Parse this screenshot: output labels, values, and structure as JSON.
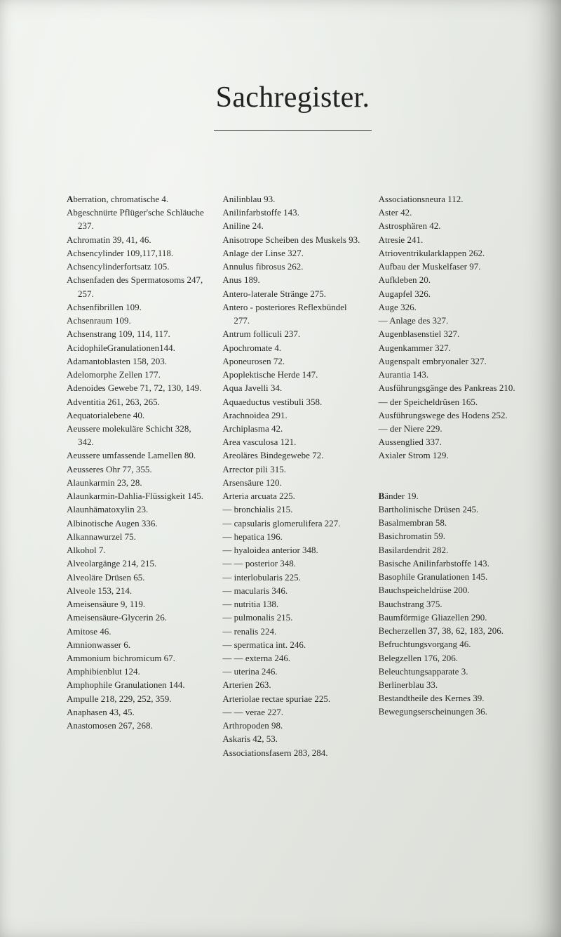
{
  "title": "Sachregister.",
  "columns": [
    [
      {
        "text": "Aberration, chromatische 4.",
        "lead": "A"
      },
      {
        "text": "Abgeschnürte Pflüger'sche Schläuche 237."
      },
      {
        "text": "Achromatin 39, 41, 46."
      },
      {
        "text": "Achsencylinder 109,117,118."
      },
      {
        "text": "Achsencylinderfortsatz 105."
      },
      {
        "text": "Achsenfaden des Spermatosoms 247, 257."
      },
      {
        "text": "Achsenfibrillen 109."
      },
      {
        "text": "Achsenraum 109."
      },
      {
        "text": "Achsenstrang 109, 114, 117."
      },
      {
        "text": "AcidophileGranulationen144."
      },
      {
        "text": "Adamantoblasten 158, 203."
      },
      {
        "text": "Adelomorphe Zellen 177."
      },
      {
        "text": "Adenoides Gewebe 71, 72, 130, 149."
      },
      {
        "text": "Adventitia 261, 263, 265."
      },
      {
        "text": "Aequatorialebene 40."
      },
      {
        "text": "Aeussere molekuläre Schicht 328, 342."
      },
      {
        "text": "Aeussere umfassende Lamellen 80."
      },
      {
        "text": "Aeusseres Ohr 77, 355."
      },
      {
        "text": "Alaunkarmin 23, 28."
      },
      {
        "text": "Alaunkarmin-Dahlia-Flüssigkeit 145."
      },
      {
        "text": "Alaunhämatoxylin 23."
      },
      {
        "text": "Albinotische Augen 336."
      },
      {
        "text": "Alkannawurzel 75."
      },
      {
        "text": "Alkohol 7."
      },
      {
        "text": "Alveolargänge 214, 215."
      },
      {
        "text": "Alveoläre Drüsen 65."
      },
      {
        "text": "Alveole 153, 214."
      },
      {
        "text": "Ameisensäure 9, 119."
      },
      {
        "text": "Ameisensäure-Glycerin 26."
      },
      {
        "text": "Amitose 46."
      },
      {
        "text": "Amnionwasser 6."
      },
      {
        "text": "Ammonium bichromicum 67."
      },
      {
        "text": "Amphibienblut 124."
      },
      {
        "text": "Amphophile Granulationen 144."
      },
      {
        "text": "Ampulle 218, 229, 252, 359."
      },
      {
        "text": "Anaphasen 43, 45."
      },
      {
        "text": "Anastomosen 267, 268."
      }
    ],
    [
      {
        "text": "Anilinblau 93."
      },
      {
        "text": "Anilinfarbstoffe 143."
      },
      {
        "text": "Aniline 24."
      },
      {
        "text": "Anisotrope Scheiben des Muskels 93."
      },
      {
        "text": "Anlage der Linse 327."
      },
      {
        "text": "Annulus fibrosus 262."
      },
      {
        "text": "Anus 189."
      },
      {
        "text": "Antero-laterale Stränge 275."
      },
      {
        "text": "Antero - posteriores Reflexbündel 277."
      },
      {
        "text": "Antrum folliculi 237."
      },
      {
        "text": "Apochromate 4."
      },
      {
        "text": "Aponeurosen 72."
      },
      {
        "text": "Apoplektische Herde 147."
      },
      {
        "text": "Aqua Javelli 34."
      },
      {
        "text": "Aquaeductus vestibuli 358."
      },
      {
        "text": "Arachnoidea 291."
      },
      {
        "text": "Archiplasma 42."
      },
      {
        "text": "Area vasculosa 121."
      },
      {
        "text": "Areoläres Bindegewebe 72."
      },
      {
        "text": "Arrector pili 315."
      },
      {
        "text": "Arsensäure 120."
      },
      {
        "text": "Arteria arcuata 225."
      },
      {
        "text": "— bronchialis 215."
      },
      {
        "text": "— capsularis glomerulifera 227."
      },
      {
        "text": "— hepatica 196."
      },
      {
        "text": "— hyaloidea anterior 348."
      },
      {
        "text": "— — posterior 348."
      },
      {
        "text": "— interlobularis 225."
      },
      {
        "text": "— macularis 346."
      },
      {
        "text": "— nutritia 138."
      },
      {
        "text": "— pulmonalis 215."
      },
      {
        "text": "— renalis 224."
      },
      {
        "text": "— spermatica int. 246."
      },
      {
        "text": "— — externa 246."
      },
      {
        "text": "— uterina 246."
      },
      {
        "text": "Arterien 263."
      },
      {
        "text": "Arteriolae rectae spuriae 225."
      },
      {
        "text": "— — verae 227."
      },
      {
        "text": "Arthropoden 98."
      },
      {
        "text": "Askaris 42, 53."
      },
      {
        "text": "Associationsfasern 283, 284."
      }
    ],
    [
      {
        "text": "Associationsneura 112."
      },
      {
        "text": "Aster 42."
      },
      {
        "text": "Astrosphären 42."
      },
      {
        "text": "Atresie 241."
      },
      {
        "text": "Atrioventrikularklappen 262."
      },
      {
        "text": "Aufbau der Muskelfaser 97."
      },
      {
        "text": "Aufkleben 20."
      },
      {
        "text": "Augapfel 326."
      },
      {
        "text": "Auge 326."
      },
      {
        "text": "— Anlage des 327."
      },
      {
        "text": "Augenblasenstiel 327."
      },
      {
        "text": "Augenkammer 327."
      },
      {
        "text": "Augenspalt embryonaler 327."
      },
      {
        "text": "Aurantia 143."
      },
      {
        "text": "Ausführungsgänge des Pankreas 210."
      },
      {
        "text": "— der Speicheldrüsen 165."
      },
      {
        "text": "Ausführungswege des Hodens 252."
      },
      {
        "text": "— der Niere 229."
      },
      {
        "text": "Aussenglied 337."
      },
      {
        "text": "Axialer Strom 129."
      },
      {
        "spacer": true
      },
      {
        "spacer": true
      },
      {
        "text": "Bänder 19.",
        "lead": "B"
      },
      {
        "text": "Bartholinische Drüsen 245."
      },
      {
        "text": "Basalmembran 58."
      },
      {
        "text": "Basichromatin 59."
      },
      {
        "text": "Basilardendrit 282."
      },
      {
        "text": "Basische Anilinfarbstoffe 143."
      },
      {
        "text": "Basophile Granulationen 145."
      },
      {
        "text": "Bauchspeicheldrüse 200."
      },
      {
        "text": "Bauchstrang 375."
      },
      {
        "text": "Baumförmige Gliazellen 290."
      },
      {
        "text": "Becherzellen 37, 38, 62, 183, 206."
      },
      {
        "text": "Befruchtungsvorgang 46."
      },
      {
        "text": "Belegzellen 176, 206."
      },
      {
        "text": "Beleuchtungsapparate 3."
      },
      {
        "text": "Berlinerblau 33."
      },
      {
        "text": "Bestandtheile des Kernes 39."
      },
      {
        "text": "Bewegungserscheinungen 36."
      }
    ]
  ]
}
